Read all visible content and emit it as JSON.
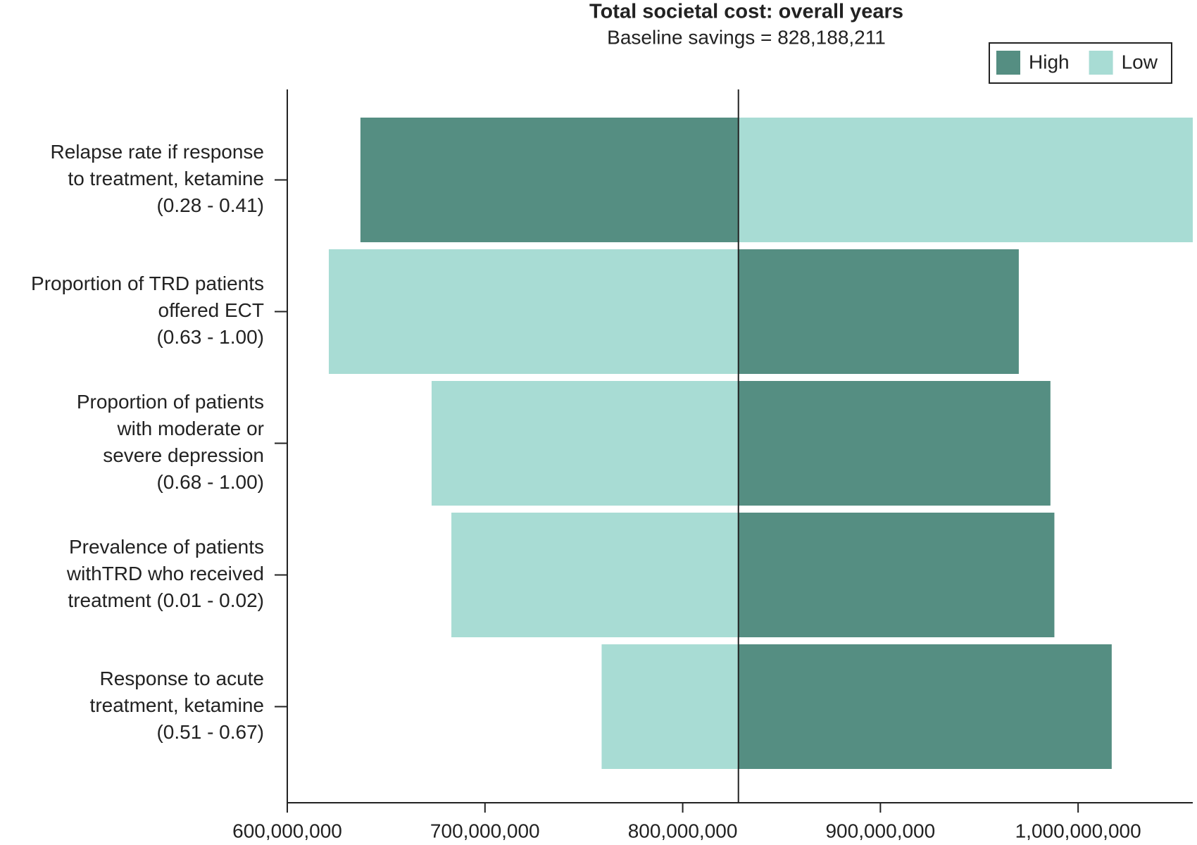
{
  "chart_data": {
    "type": "tornado",
    "title": "Total societal cost: overall years",
    "subtitle": "Baseline savings = 828,188,211",
    "baseline": 828188211,
    "orientation": "horizontal",
    "categories": [
      [
        "Relapse rate if response",
        "to treatment, ketamine",
        "(0.28 - 0.41)"
      ],
      [
        "Proportion of TRD patients",
        "offered ECT",
        "(0.63 - 1.00)"
      ],
      [
        "Proportion of patients",
        "with moderate or",
        "severe depression",
        "(0.68 - 1.00)"
      ],
      [
        "Prevalence of patients",
        "withTRD who received",
        "treatment (0.01 - 0.02)"
      ],
      [
        "Response to acute",
        "treatment, ketamine",
        "(0.51 - 0.67)"
      ]
    ],
    "series": [
      {
        "name": "High",
        "color": "#558e82",
        "values": [
          637000000,
          970000000,
          986000000,
          988000000,
          1017000000
        ]
      },
      {
        "name": "Low",
        "color": "#a8dcd4",
        "values": [
          1058000000,
          621000000,
          673000000,
          683000000,
          759000000
        ]
      }
    ],
    "xlim": [
      600000000,
      1058000000
    ],
    "xticks": [
      {
        "value": 600000000,
        "label": "600,000,000"
      },
      {
        "value": 700000000,
        "label": "700,000,000"
      },
      {
        "value": 800000000,
        "label": "800,000,000"
      },
      {
        "value": 900000000,
        "label": "900,000,000"
      },
      {
        "value": 1000000000,
        "label": "1,000,000,000"
      }
    ],
    "legend_position": "top-right"
  }
}
